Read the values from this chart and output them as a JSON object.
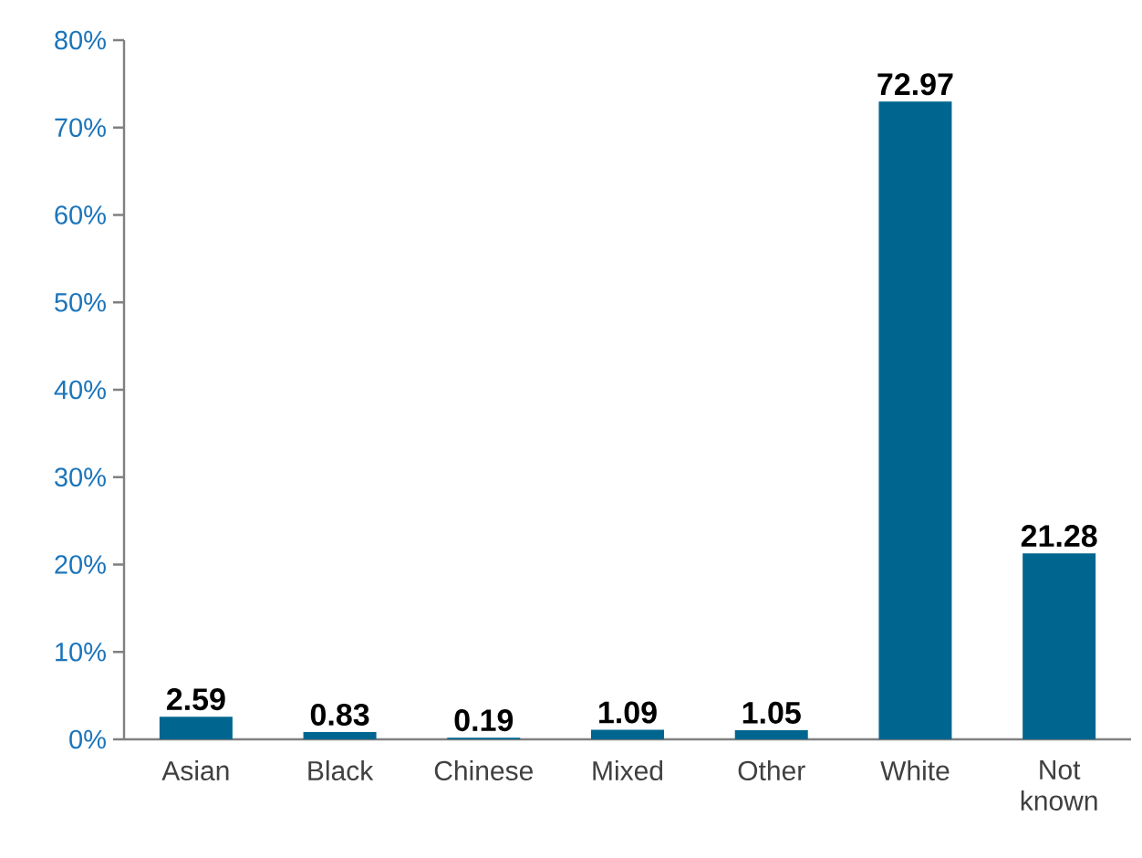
{
  "chart_data": {
    "type": "bar",
    "categories": [
      "Asian",
      "Black",
      "Chinese",
      "Mixed",
      "Other",
      "White",
      "Not known"
    ],
    "values": [
      2.59,
      0.83,
      0.19,
      1.09,
      1.05,
      72.97,
      21.28
    ],
    "color": "#00668f",
    "ylim": [
      0,
      80
    ],
    "yticks": [
      {
        "value": 0,
        "label": "0%"
      },
      {
        "value": 10,
        "label": "10%"
      },
      {
        "value": 20,
        "label": "20%"
      },
      {
        "value": 30,
        "label": "30%"
      },
      {
        "value": 40,
        "label": "40%"
      },
      {
        "value": 50,
        "label": "50%"
      },
      {
        "value": 60,
        "label": "60%"
      },
      {
        "value": 70,
        "label": "70%"
      },
      {
        "value": 80,
        "label": "80%"
      }
    ],
    "data_labels": true
  }
}
